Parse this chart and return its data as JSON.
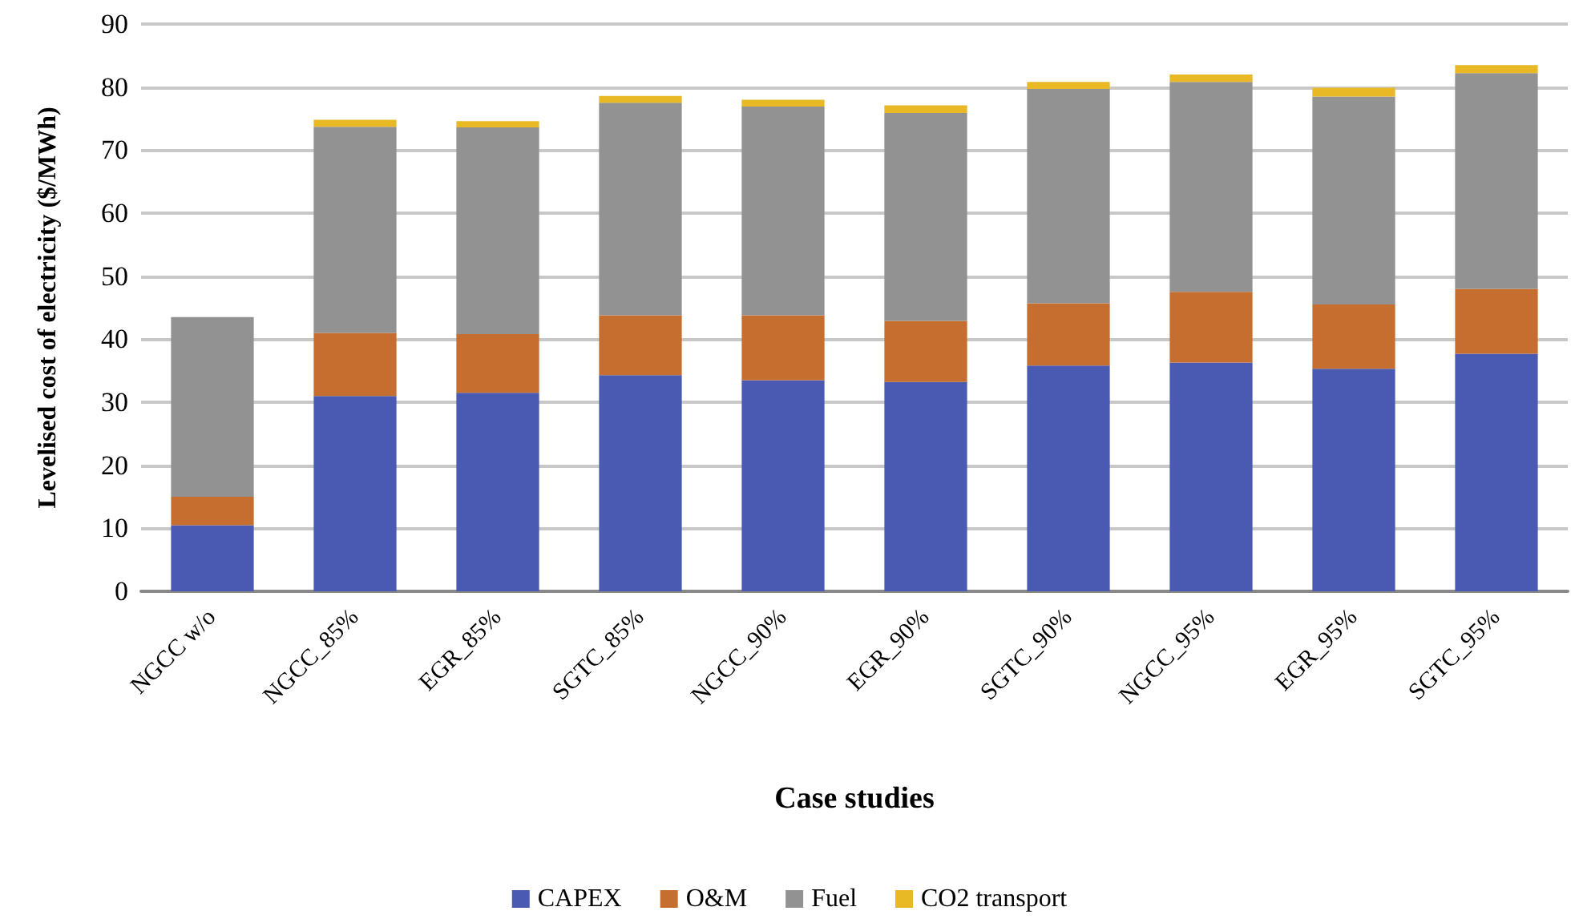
{
  "chart_data": {
    "type": "bar",
    "stacked": true,
    "xlabel": "Case studies",
    "ylabel": "Levelised cost of electricity ($/MWh)",
    "categories": [
      "NGCC w/o",
      "NGCC_85%",
      "EGR_85%",
      "SGTC_85%",
      "NGCC_90%",
      "EGR_90%",
      "SGTC_90%",
      "NGCC_95%",
      "EGR_95%",
      "SGTC_95%"
    ],
    "series": [
      {
        "name": "CAPEX",
        "color": "#4a5ab3",
        "values": [
          10.5,
          31,
          31.5,
          34.3,
          33.5,
          33.2,
          35.8,
          36.3,
          35.3,
          37.7
        ]
      },
      {
        "name": "O&M",
        "color": "#c56e2f",
        "values": [
          4.5,
          10,
          9.3,
          9.5,
          10.3,
          9.7,
          9.9,
          11.2,
          10.2,
          10.3
        ]
      },
      {
        "name": "Fuel",
        "color": "#929292",
        "values": [
          28.5,
          32.7,
          32.8,
          33.7,
          33.1,
          33,
          34,
          33.3,
          33,
          34.2
        ]
      },
      {
        "name": "CO2 transport",
        "color": "#e8b825",
        "values": [
          0,
          1.1,
          1,
          1.1,
          1.1,
          1.2,
          1.1,
          1.2,
          1.4,
          1.3
        ]
      }
    ],
    "ylim": [
      0,
      90
    ],
    "yticks": [
      0,
      10,
      20,
      30,
      40,
      50,
      60,
      70,
      80,
      90
    ],
    "grid": "y",
    "legend": "bottom"
  }
}
